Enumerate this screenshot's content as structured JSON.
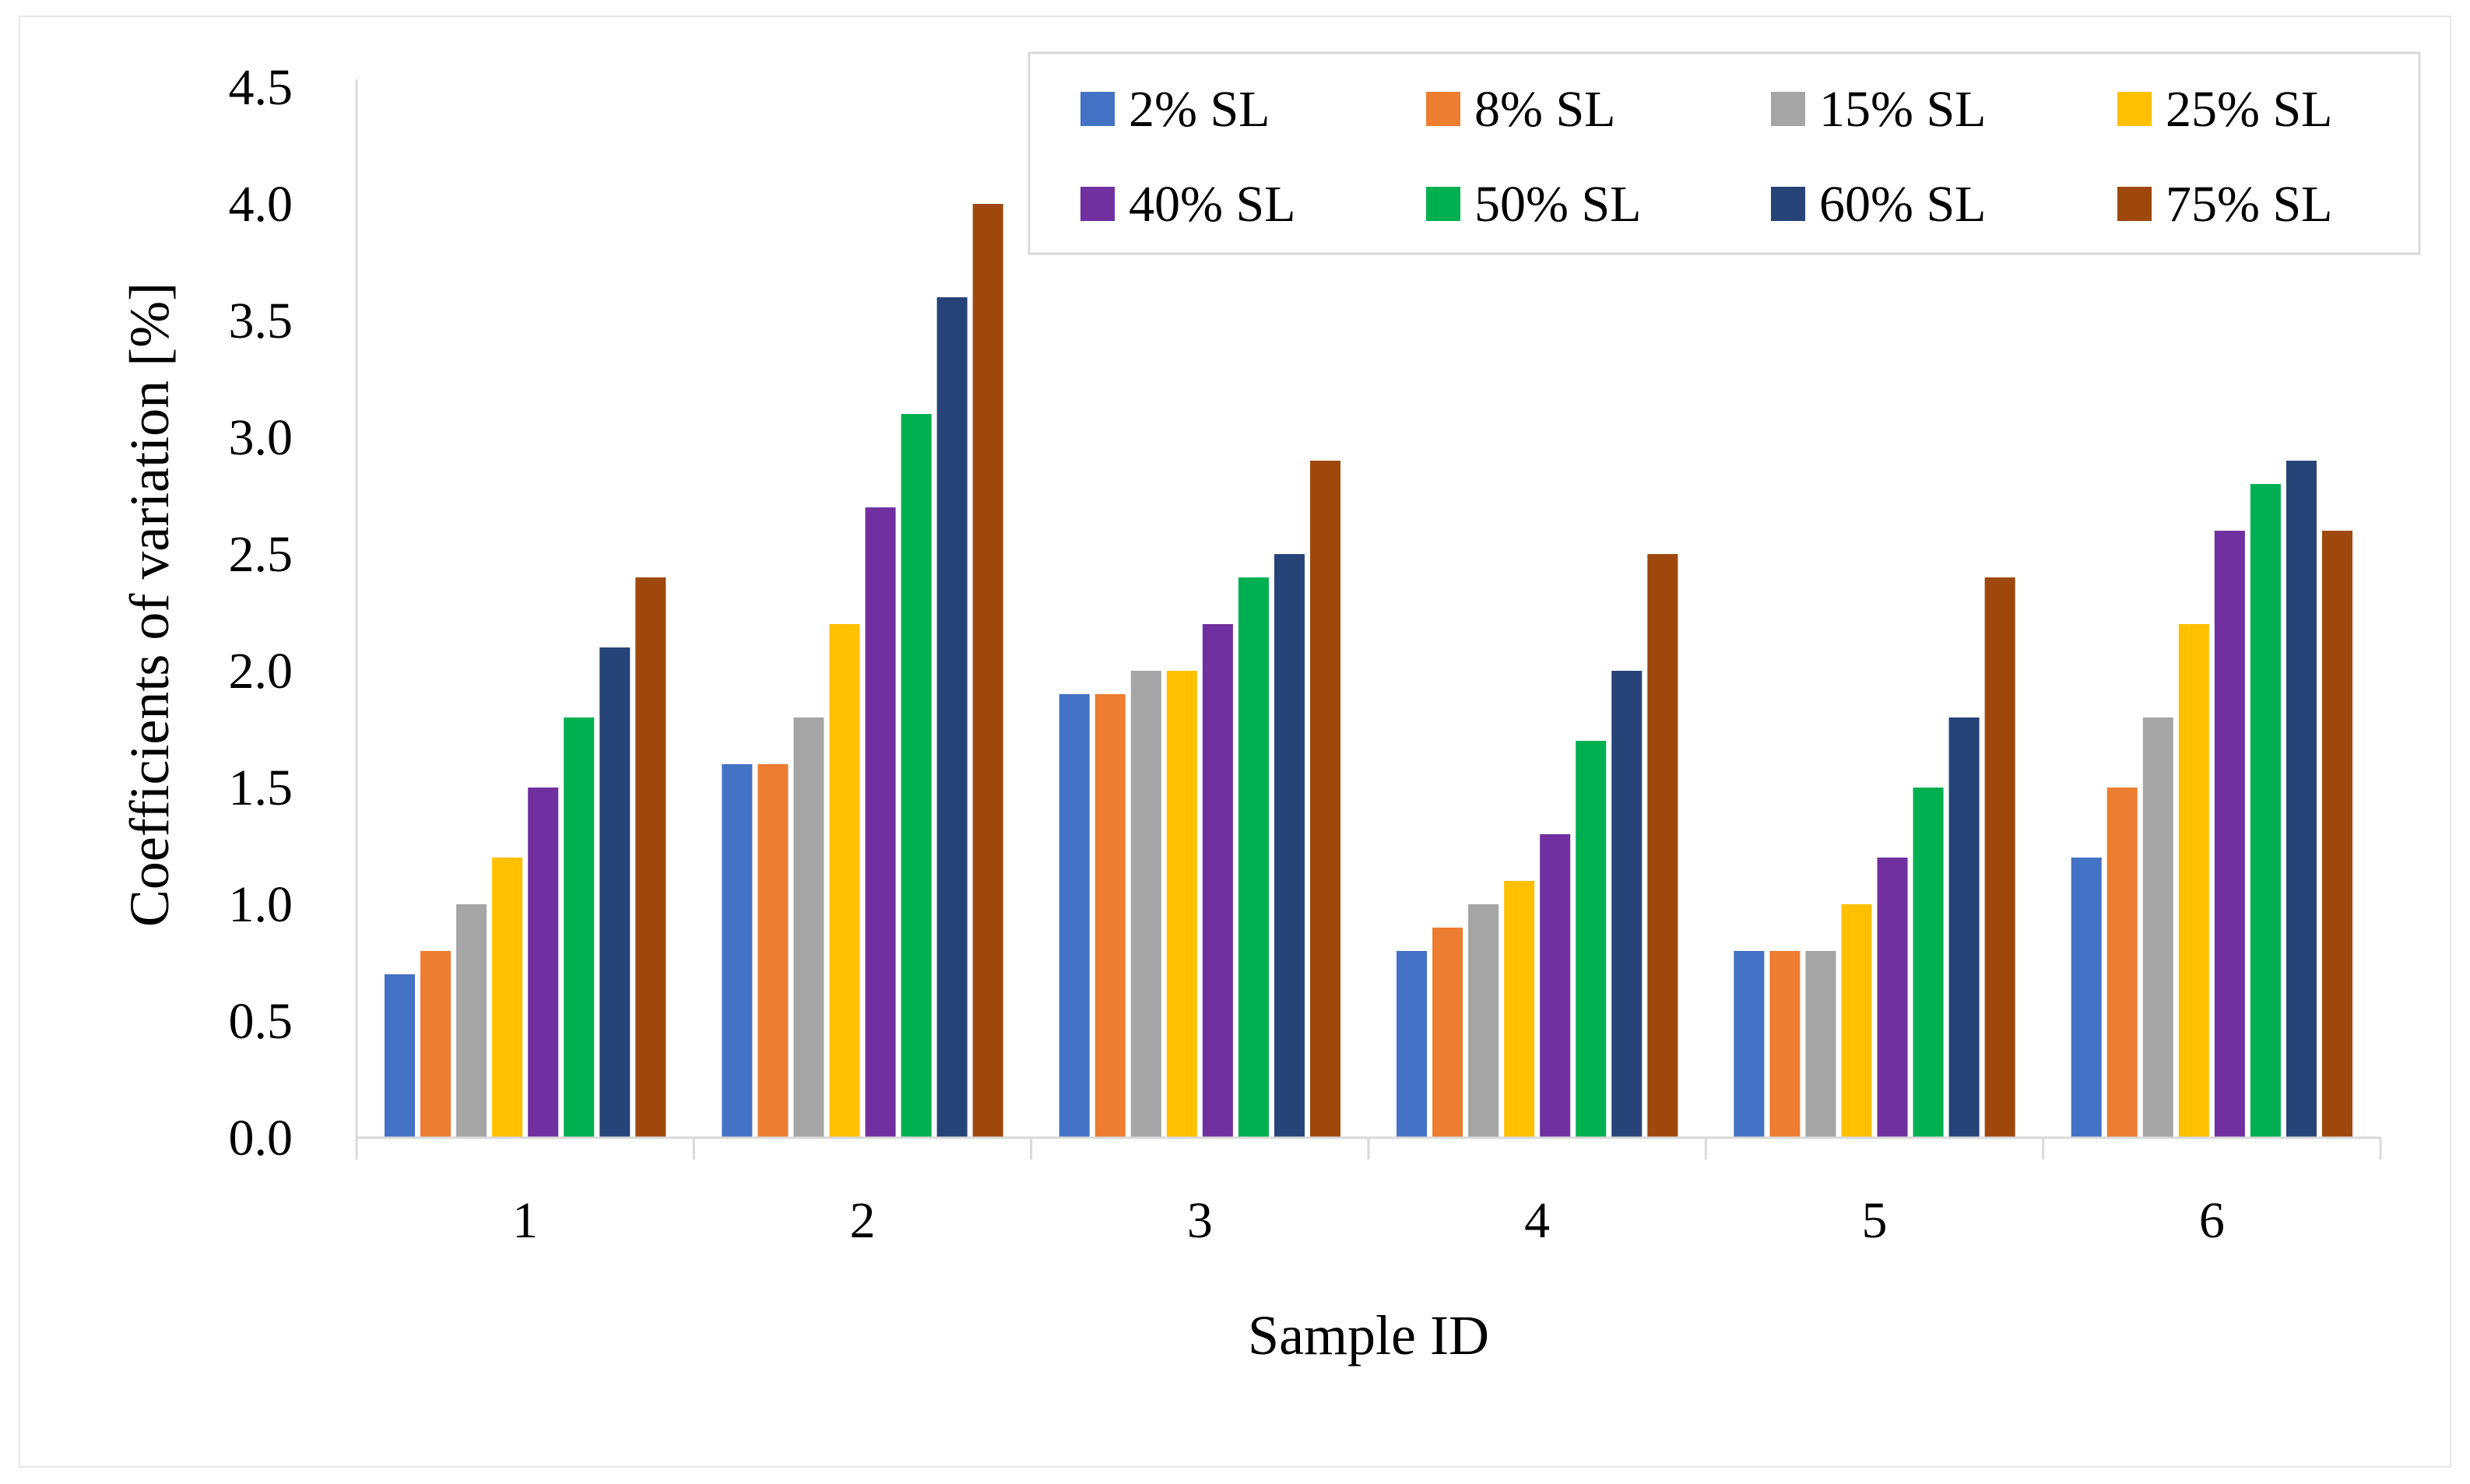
{
  "chart_data": {
    "type": "bar",
    "title": "",
    "xlabel": "Sample ID",
    "ylabel": "Coefficients of variation [%]",
    "ylim": [
      0,
      4.5
    ],
    "yticks": [
      "0.0",
      "0.5",
      "1.0",
      "1.5",
      "2.0",
      "2.5",
      "3.0",
      "3.5",
      "4.0",
      "4.5"
    ],
    "grid": false,
    "legend_position": "top-right",
    "categories": [
      "1",
      "2",
      "3",
      "4",
      "5",
      "6"
    ],
    "series": [
      {
        "name": "2% SL",
        "color": "#4472C4",
        "values": [
          0.7,
          1.6,
          1.9,
          0.8,
          0.8,
          1.2
        ]
      },
      {
        "name": "8% SL",
        "color": "#ED7D31",
        "values": [
          0.8,
          1.6,
          1.9,
          0.9,
          0.8,
          1.5
        ]
      },
      {
        "name": "15% SL",
        "color": "#A5A5A5",
        "values": [
          1.0,
          1.8,
          2.0,
          1.0,
          0.8,
          1.8
        ]
      },
      {
        "name": "25% SL",
        "color": "#FFC000",
        "values": [
          1.2,
          2.2,
          2.0,
          1.1,
          1.0,
          2.2
        ]
      },
      {
        "name": "40% SL",
        "color": "#7030A0",
        "values": [
          1.5,
          2.7,
          2.2,
          1.3,
          1.2,
          2.6
        ]
      },
      {
        "name": "50% SL",
        "color": "#00B050",
        "values": [
          1.8,
          3.1,
          2.4,
          1.7,
          1.5,
          2.8
        ]
      },
      {
        "name": "60% SL",
        "color": "#264478",
        "values": [
          2.1,
          3.6,
          2.5,
          2.0,
          1.8,
          2.9
        ]
      },
      {
        "name": "75% SL",
        "color": "#9E480E",
        "values": [
          2.4,
          4.0,
          2.9,
          2.5,
          2.4,
          2.6
        ]
      }
    ]
  }
}
